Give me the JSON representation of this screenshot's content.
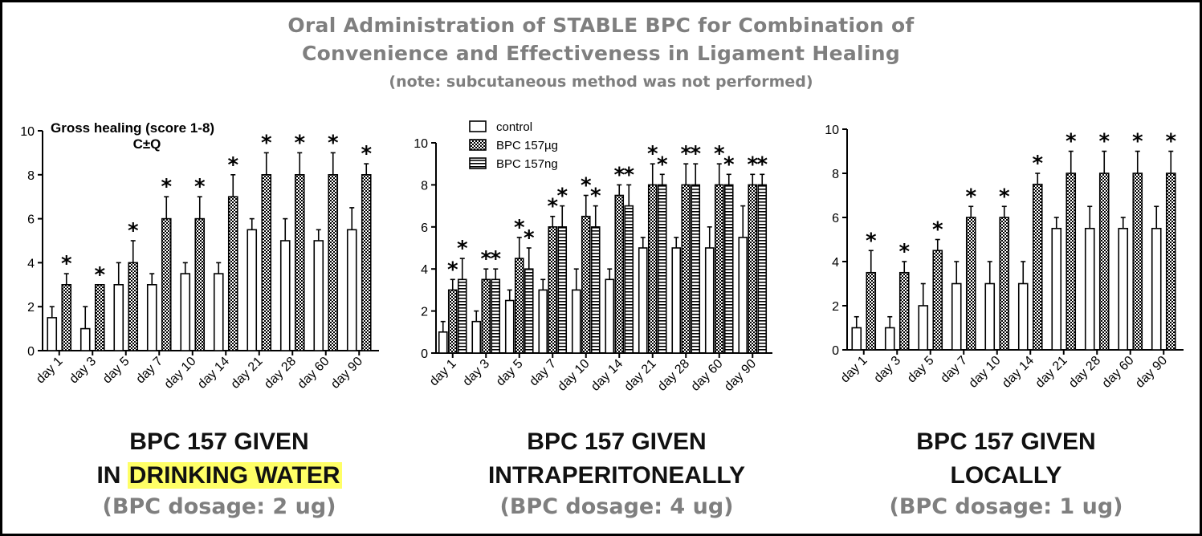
{
  "title": {
    "line1": "Oral Administration of STABLE BPC for Combination of",
    "line2": "Convenience and Effectiveness in Ligament Healing",
    "line3": "(note: subcutaneous method was not performed)"
  },
  "colors": {
    "title_gray": "#7f7f7f",
    "highlight": "#ffff66",
    "bar_stroke": "#000000"
  },
  "captions": [
    {
      "line1": "BPC 157 GIVEN",
      "line2_prefix": "IN ",
      "line2_highlight": "DRINKING WATER",
      "line2": "",
      "dosage": "(BPC dosage: 2 ug)"
    },
    {
      "line1": "BPC 157 GIVEN",
      "line2_prefix": "",
      "line2_highlight": "",
      "line2": "INTRAPERITONEALLY",
      "dosage": "(BPC dosage: 4 ug)"
    },
    {
      "line1": "BPC 157 GIVEN",
      "line2_prefix": "",
      "line2_highlight": "",
      "line2": "LOCALLY",
      "dosage": "(BPC dosage: 1 ug)"
    }
  ],
  "chart_data": [
    {
      "type": "bar",
      "annotation": [
        "Gross healing (score 1-8)",
        "C±Q"
      ],
      "categories": [
        "day 1",
        "day 3",
        "day 5",
        "day 7",
        "day 10",
        "day 14",
        "day 21",
        "day 28",
        "day 60",
        "day 90"
      ],
      "ylim": [
        0,
        10
      ],
      "yticks": [
        0,
        2,
        4,
        6,
        8,
        10
      ],
      "series": [
        {
          "pattern": "control",
          "values": [
            1.5,
            1,
            3,
            3,
            3.5,
            3.5,
            5.5,
            5,
            5,
            5.5
          ],
          "errors": [
            0.5,
            1,
            1,
            0.5,
            0.5,
            0.5,
            0.5,
            1,
            0.5,
            1
          ],
          "stars": [
            false,
            false,
            false,
            false,
            false,
            false,
            false,
            false,
            false,
            false
          ]
        },
        {
          "pattern": "dense",
          "values": [
            3,
            3,
            4,
            6,
            6,
            7,
            8,
            8,
            8,
            8
          ],
          "errors": [
            0.5,
            0,
            1,
            1,
            1,
            1,
            1,
            1,
            1,
            0.5
          ],
          "stars": [
            true,
            true,
            true,
            true,
            true,
            true,
            true,
            true,
            true,
            true
          ]
        }
      ]
    },
    {
      "type": "bar",
      "legend": [
        "control",
        "BPC 157µg",
        "BPC 157ng"
      ],
      "legend_position": "top-left",
      "categories": [
        "day 1",
        "day 3",
        "day 5",
        "day 7",
        "day 10",
        "day 14",
        "day 21",
        "day 28",
        "day 60",
        "day 90"
      ],
      "ylim": [
        0,
        10
      ],
      "yticks": [
        0,
        2,
        4,
        6,
        8,
        10
      ],
      "series": [
        {
          "name": "control",
          "pattern": "control",
          "values": [
            1,
            1.5,
            2.5,
            3,
            3,
            3.5,
            5,
            5,
            5,
            5.5
          ],
          "errors": [
            0.5,
            0.5,
            0.5,
            0.5,
            1,
            0.5,
            0.5,
            0.5,
            1,
            1.5
          ],
          "stars": [
            false,
            false,
            false,
            false,
            false,
            false,
            false,
            false,
            false,
            false
          ]
        },
        {
          "name": "BPC 157µg",
          "pattern": "dense",
          "values": [
            3,
            3.5,
            4.5,
            6,
            6.5,
            7.5,
            8,
            8,
            8,
            8
          ],
          "errors": [
            0.5,
            0.5,
            1,
            0.5,
            1,
            0.5,
            1,
            1,
            1,
            0.5
          ],
          "stars": [
            true,
            true,
            true,
            true,
            true,
            true,
            true,
            true,
            true,
            true
          ]
        },
        {
          "name": "BPC 157ng",
          "pattern": "stripe",
          "values": [
            3.5,
            3.5,
            4,
            6,
            6,
            7,
            8,
            8,
            8,
            8
          ],
          "errors": [
            1,
            0.5,
            1,
            1,
            1,
            1,
            0.5,
            1,
            0.5,
            0.5
          ],
          "stars": [
            true,
            true,
            true,
            true,
            true,
            true,
            true,
            true,
            true,
            true
          ]
        }
      ]
    },
    {
      "type": "bar",
      "categories": [
        "day 1",
        "day 3",
        "day 5",
        "day 7",
        "day 10",
        "day 14",
        "day 21",
        "day 28",
        "day 60",
        "day 90"
      ],
      "ylim": [
        0,
        10
      ],
      "yticks": [
        0,
        2,
        4,
        6,
        8,
        10
      ],
      "series": [
        {
          "pattern": "control",
          "values": [
            1,
            1,
            2,
            3,
            3,
            3,
            5.5,
            5.5,
            5.5,
            5.5
          ],
          "errors": [
            0.5,
            0.5,
            1,
            1,
            1,
            1,
            0.5,
            1,
            0.5,
            1
          ],
          "stars": [
            false,
            false,
            false,
            false,
            false,
            false,
            false,
            false,
            false,
            false
          ]
        },
        {
          "pattern": "dense",
          "values": [
            3.5,
            3.5,
            4.5,
            6,
            6,
            7.5,
            8,
            8,
            8,
            8
          ],
          "errors": [
            1,
            0.5,
            0.5,
            0.5,
            0.5,
            0.5,
            1,
            1,
            1,
            1
          ],
          "stars": [
            true,
            true,
            true,
            true,
            true,
            true,
            true,
            true,
            true,
            true
          ]
        }
      ]
    }
  ]
}
